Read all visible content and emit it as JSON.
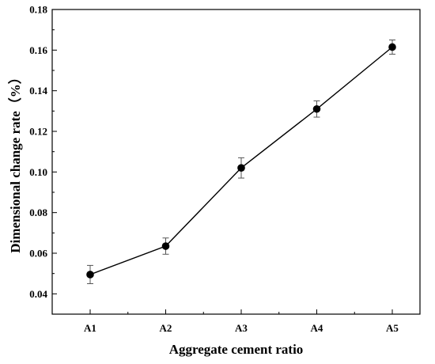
{
  "chart_data": {
    "type": "line",
    "title": "",
    "xlabel": "Aggregate cement ratio",
    "ylabel": "Dimensional change rate（%）",
    "categories": [
      "A1",
      "A2",
      "A3",
      "A4",
      "A5"
    ],
    "series": [
      {
        "values": [
          0.0495,
          0.0635,
          0.102,
          0.131,
          0.1615
        ],
        "error": [
          0.0045,
          0.004,
          0.005,
          0.004,
          0.0035
        ]
      }
    ],
    "ylim": [
      0.03,
      0.18
    ],
    "yticks": [
      0.04,
      0.06,
      0.08,
      0.1,
      0.12,
      0.14,
      0.16,
      0.18
    ],
    "ytick_labels": [
      "0.04",
      "0.06",
      "0.08",
      "0.10",
      "0.12",
      "0.14",
      "0.16",
      "0.18"
    ],
    "grid": false,
    "legend": "none",
    "colors": {
      "line": "#000000",
      "marker": "#000000",
      "error_bar": "#555555",
      "axis": "#000000"
    }
  }
}
